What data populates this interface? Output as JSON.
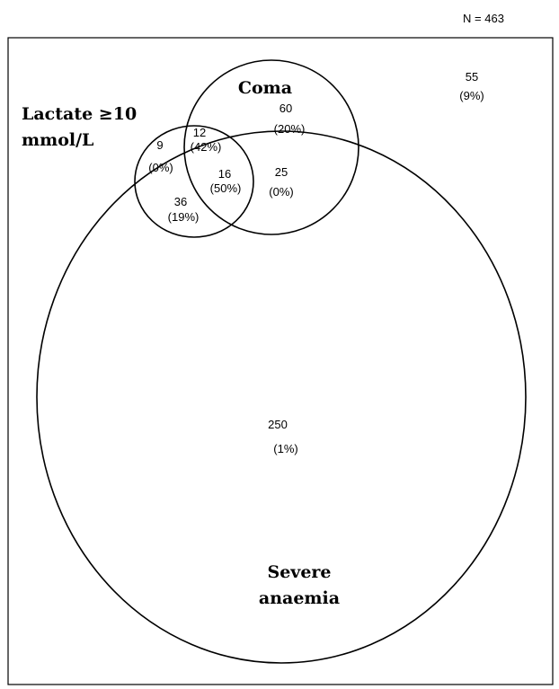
{
  "total": "N = 463",
  "sets": {
    "lactate": {
      "line1": "Lactate ≥10",
      "line2": "mmol/L"
    },
    "coma": {
      "label": "Coma"
    },
    "anaemia": {
      "line1": "Severe",
      "line2": "anaemia"
    }
  },
  "regions": {
    "outside": {
      "count": "55",
      "pct": "(9%)"
    },
    "coma_only": {
      "count": "60",
      "pct": "(20%)"
    },
    "lactate_coma": {
      "count": "12",
      "pct": "(42%)"
    },
    "lactate_only": {
      "count": "9",
      "pct": "(0%)"
    },
    "all_three": {
      "count": "16",
      "pct": "(50%)"
    },
    "coma_anaemia": {
      "count": "25",
      "pct": "(0%)"
    },
    "lactate_anaemia": {
      "count": "36",
      "pct": "(19%)"
    },
    "anaemia_only": {
      "count": "250",
      "pct": "(1%)"
    }
  }
}
